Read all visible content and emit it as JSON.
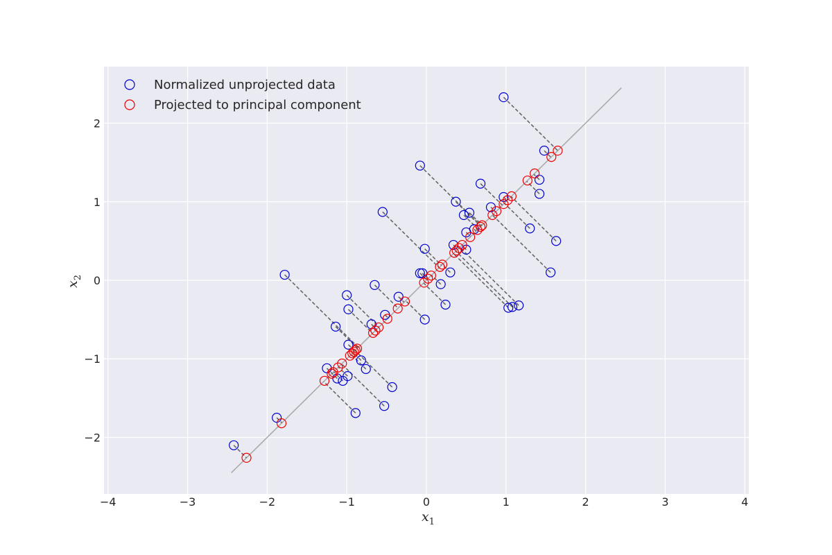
{
  "chart_data": {
    "type": "scatter",
    "title": "",
    "xlabel": "x",
    "xlabel_sub": "1",
    "ylabel": "x",
    "ylabel_sub": "2",
    "xlim": [
      -4.05,
      4.05
    ],
    "ylim": [
      -2.72,
      2.72
    ],
    "xticks": [
      -4,
      -3,
      -2,
      -1,
      0,
      1,
      2,
      3,
      4
    ],
    "yticks": [
      -2,
      -1,
      0,
      1,
      2
    ],
    "grid": true,
    "legend_position": "top-left",
    "principal_axis": {
      "from": [
        -2.45,
        -2.45
      ],
      "to": [
        2.45,
        2.45
      ],
      "color": "#aaaaaa"
    },
    "series": [
      {
        "name": "Normalized unprojected data",
        "color": "#0000cc",
        "points": [
          [
            0.97,
            2.33
          ],
          [
            1.48,
            1.65
          ],
          [
            -0.08,
            1.46
          ],
          [
            0.68,
            1.23
          ],
          [
            1.42,
            1.28
          ],
          [
            0.97,
            1.06
          ],
          [
            1.42,
            1.1
          ],
          [
            0.37,
            1.0
          ],
          [
            0.81,
            0.93
          ],
          [
            0.54,
            0.86
          ],
          [
            0.47,
            0.83
          ],
          [
            -0.55,
            0.87
          ],
          [
            1.3,
            0.66
          ],
          [
            0.6,
            0.65
          ],
          [
            0.5,
            0.61
          ],
          [
            1.63,
            0.5
          ],
          [
            0.34,
            0.45
          ],
          [
            0.5,
            0.39
          ],
          [
            -0.02,
            0.4
          ],
          [
            -0.08,
            0.09
          ],
          [
            -0.05,
            0.09
          ],
          [
            0.3,
            0.1
          ],
          [
            1.56,
            0.1
          ],
          [
            -1.78,
            0.07
          ],
          [
            0.18,
            -0.05
          ],
          [
            -0.65,
            -0.06
          ],
          [
            -1.0,
            -0.19
          ],
          [
            -0.35,
            -0.21
          ],
          [
            0.24,
            -0.31
          ],
          [
            1.16,
            -0.32
          ],
          [
            1.08,
            -0.34
          ],
          [
            1.03,
            -0.35
          ],
          [
            -0.98,
            -0.37
          ],
          [
            -0.52,
            -0.44
          ],
          [
            -0.02,
            -0.5
          ],
          [
            -0.69,
            -0.56
          ],
          [
            -1.14,
            -0.59
          ],
          [
            -0.98,
            -0.82
          ],
          [
            -0.82,
            -1.02
          ],
          [
            -1.25,
            -1.12
          ],
          [
            -0.76,
            -1.13
          ],
          [
            -1.12,
            -1.25
          ],
          [
            -0.99,
            -1.22
          ],
          [
            -1.05,
            -1.28
          ],
          [
            -0.43,
            -1.36
          ],
          [
            -0.53,
            -1.6
          ],
          [
            -0.89,
            -1.69
          ],
          [
            -1.88,
            -1.75
          ],
          [
            -2.42,
            -2.1
          ]
        ]
      },
      {
        "name": "Projected to principal component",
        "color": "#ee0000",
        "points": [
          [
            1.65,
            1.65
          ],
          [
            1.57,
            1.57
          ],
          [
            1.36,
            1.36
          ],
          [
            1.27,
            1.27
          ],
          [
            1.07,
            1.07
          ],
          [
            1.02,
            1.02
          ],
          [
            0.97,
            0.97
          ],
          [
            0.88,
            0.88
          ],
          [
            0.83,
            0.83
          ],
          [
            0.7,
            0.7
          ],
          [
            0.68,
            0.68
          ],
          [
            0.64,
            0.64
          ],
          [
            0.55,
            0.55
          ],
          [
            0.45,
            0.45
          ],
          [
            0.41,
            0.41
          ],
          [
            0.38,
            0.38
          ],
          [
            0.35,
            0.35
          ],
          [
            0.2,
            0.2
          ],
          [
            0.17,
            0.17
          ],
          [
            0.06,
            0.06
          ],
          [
            0.02,
            0.02
          ],
          [
            -0.03,
            -0.03
          ],
          [
            -0.27,
            -0.27
          ],
          [
            -0.36,
            -0.36
          ],
          [
            -0.49,
            -0.49
          ],
          [
            -0.6,
            -0.6
          ],
          [
            -0.64,
            -0.64
          ],
          [
            -0.67,
            -0.67
          ],
          [
            -0.87,
            -0.87
          ],
          [
            -0.89,
            -0.89
          ],
          [
            -0.91,
            -0.91
          ],
          [
            -0.93,
            -0.93
          ],
          [
            -0.96,
            -0.96
          ],
          [
            -1.06,
            -1.06
          ],
          [
            -1.11,
            -1.11
          ],
          [
            -1.17,
            -1.17
          ],
          [
            -1.19,
            -1.19
          ],
          [
            -1.28,
            -1.28
          ],
          [
            -1.82,
            -1.82
          ],
          [
            -2.26,
            -2.26
          ]
        ]
      }
    ]
  }
}
